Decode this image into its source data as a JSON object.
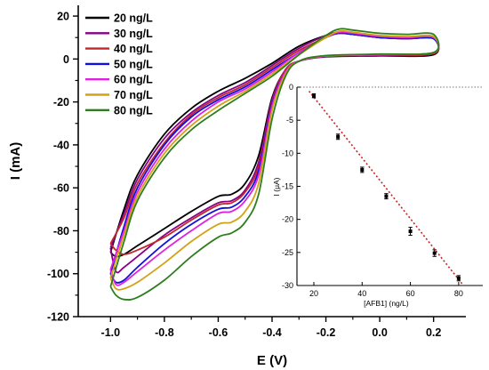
{
  "chart_data": [
    {
      "type": "line",
      "xlabel": "E (V)",
      "ylabel": "I (mA)",
      "xlim": [
        -1.12,
        0.32
      ],
      "ylim": [
        -120,
        25
      ],
      "xticks": [
        -1.0,
        -0.8,
        -0.6,
        -0.4,
        -0.2,
        0.0,
        0.2
      ],
      "xtick_labels": [
        "-1.0",
        "-0.8",
        "-0.6",
        "-0.4",
        "-0.2",
        "0.0",
        "0.2"
      ],
      "yticks": [
        20,
        0,
        -20,
        -40,
        -60,
        -80,
        -100,
        -120
      ],
      "ytick_labels": [
        "20",
        "0",
        "-20",
        "-40",
        "-60",
        "-80",
        "-100",
        "-120"
      ],
      "legend_position": "top-left",
      "grid": false,
      "series": [
        {
          "name": "20 ng/L",
          "color": "#000000",
          "upper": {
            "x": [
              -1.0,
              -0.95,
              -0.9,
              -0.8,
              -0.7,
              -0.6,
              -0.5,
              -0.4,
              -0.3,
              -0.2,
              -0.15,
              -0.1,
              0.0,
              0.1,
              0.2
            ],
            "y": [
              -90,
              -70,
              -54,
              -35,
              -23,
              -15,
              -9,
              -2,
              6,
              11,
              12,
              11.5,
              10,
              9.5,
              9.5
            ]
          },
          "lower": {
            "x": [
              0.2,
              0.0,
              -0.2,
              -0.3,
              -0.35,
              -0.4,
              -0.45,
              -0.5,
              -0.55,
              -0.6,
              -0.7,
              -0.8,
              -0.9,
              -0.95,
              -0.98
            ],
            "y": [
              2,
              1.5,
              1,
              -1,
              -5,
              -18,
              -45,
              -58,
              -63,
              -64,
              -71,
              -79,
              -87,
              -91,
              -92
            ]
          }
        },
        {
          "name": "30 ng/L",
          "color": "#880088",
          "upper": {
            "x": [
              -1.0,
              -0.95,
              -0.9,
              -0.8,
              -0.7,
              -0.6,
              -0.5,
              -0.4,
              -0.3,
              -0.2,
              -0.15,
              -0.1,
              0.0,
              0.1,
              0.2
            ],
            "y": [
              -88,
              -72,
              -56,
              -37,
              -25,
              -17,
              -11,
              -3,
              5,
              11,
              12.5,
              12,
              10.5,
              10,
              10
            ]
          },
          "lower": {
            "x": [
              0.2,
              0.0,
              -0.2,
              -0.3,
              -0.35,
              -0.4,
              -0.45,
              -0.5,
              -0.55,
              -0.6,
              -0.7,
              -0.8,
              -0.9,
              -0.95,
              -0.98
            ],
            "y": [
              2.5,
              1.8,
              1.2,
              -1,
              -5,
              -19,
              -48,
              -61,
              -66,
              -67,
              -74,
              -82,
              -92,
              -97,
              -99
            ]
          }
        },
        {
          "name": "40 ng/L",
          "color": "#c0282b",
          "upper": {
            "x": [
              -1.0,
              -0.95,
              -0.9,
              -0.8,
              -0.7,
              -0.6,
              -0.5,
              -0.4,
              -0.3,
              -0.2,
              -0.15,
              -0.1,
              0.0,
              0.1,
              0.2
            ],
            "y": [
              -86,
              -74,
              -58,
              -39,
              -26,
              -18,
              -12,
              -4,
              4,
              10,
              12,
              11.5,
              10,
              9.5,
              9.5
            ]
          },
          "lower": {
            "x": [
              0.2,
              0.0,
              -0.2,
              -0.3,
              -0.35,
              -0.4,
              -0.45,
              -0.5,
              -0.55,
              -0.6,
              -0.7,
              -0.8,
              -0.9,
              -0.95,
              -0.98
            ],
            "y": [
              2.5,
              1.8,
              1.2,
              -1,
              -5,
              -20,
              -50,
              -62,
              -67,
              -68,
              -75,
              -83,
              -89,
              -91,
              -89
            ]
          }
        },
        {
          "name": "50 ng/L",
          "color": "#1010dd",
          "upper": {
            "x": [
              -1.0,
              -0.95,
              -0.9,
              -0.8,
              -0.7,
              -0.6,
              -0.5,
              -0.4,
              -0.3,
              -0.2,
              -0.15,
              -0.1,
              0.0,
              0.1,
              0.2
            ],
            "y": [
              -100,
              -78,
              -60,
              -40,
              -27,
              -19,
              -13,
              -5,
              3,
              10,
              12,
              11.5,
              10,
              9.5,
              9.5
            ]
          },
          "lower": {
            "x": [
              0.2,
              0.0,
              -0.2,
              -0.3,
              -0.35,
              -0.4,
              -0.45,
              -0.5,
              -0.55,
              -0.6,
              -0.7,
              -0.8,
              -0.9,
              -0.95,
              -0.98
            ],
            "y": [
              3,
              2,
              1.3,
              -1,
              -6,
              -21,
              -52,
              -64,
              -69,
              -70,
              -77,
              -86,
              -97,
              -103,
              -104
            ]
          }
        },
        {
          "name": "60 ng/L",
          "color": "#e020e0",
          "upper": {
            "x": [
              -1.0,
              -0.95,
              -0.9,
              -0.8,
              -0.7,
              -0.6,
              -0.5,
              -0.4,
              -0.3,
              -0.2,
              -0.15,
              -0.1,
              0.0,
              0.1,
              0.2
            ],
            "y": [
              -98,
              -80,
              -62,
              -42,
              -29,
              -20,
              -14,
              -6,
              3,
              10,
              12.5,
              12,
              10.5,
              10,
              10
            ]
          },
          "lower": {
            "x": [
              0.2,
              0.0,
              -0.2,
              -0.3,
              -0.35,
              -0.4,
              -0.45,
              -0.5,
              -0.55,
              -0.6,
              -0.7,
              -0.8,
              -0.9,
              -0.95,
              -0.98
            ],
            "y": [
              3,
              2,
              1.3,
              -1,
              -6,
              -22,
              -54,
              -66,
              -71,
              -72,
              -80,
              -89,
              -99,
              -104,
              -105
            ]
          }
        },
        {
          "name": "70 ng/L",
          "color": "#d4a017",
          "upper": {
            "x": [
              -1.0,
              -0.95,
              -0.9,
              -0.8,
              -0.7,
              -0.6,
              -0.5,
              -0.4,
              -0.3,
              -0.2,
              -0.15,
              -0.1,
              0.0,
              0.1,
              0.2
            ],
            "y": [
              -102,
              -82,
              -64,
              -44,
              -31,
              -22,
              -15,
              -7,
              2,
              10,
              13,
              12.5,
              11,
              10.5,
              10.5
            ]
          },
          "lower": {
            "x": [
              0.2,
              0.0,
              -0.2,
              -0.3,
              -0.35,
              -0.4,
              -0.45,
              -0.5,
              -0.55,
              -0.6,
              -0.7,
              -0.8,
              -0.9,
              -0.95,
              -0.98
            ],
            "y": [
              3,
              2.2,
              1.5,
              -1,
              -7,
              -24,
              -58,
              -71,
              -76,
              -77,
              -85,
              -95,
              -104,
              -107,
              -107
            ]
          }
        },
        {
          "name": "80 ng/L",
          "color": "#2e7d1e",
          "upper": {
            "x": [
              -1.0,
              -0.95,
              -0.9,
              -0.8,
              -0.7,
              -0.6,
              -0.5,
              -0.4,
              -0.3,
              -0.2,
              -0.15,
              -0.1,
              0.0,
              0.1,
              0.2
            ],
            "y": [
              -106,
              -85,
              -66,
              -46,
              -33,
              -24,
              -16,
              -8,
              2,
              11,
              14,
              13.5,
              12,
              11.5,
              11.5
            ]
          },
          "lower": {
            "x": [
              0.2,
              0.0,
              -0.2,
              -0.3,
              -0.35,
              -0.4,
              -0.45,
              -0.5,
              -0.55,
              -0.6,
              -0.7,
              -0.8,
              -0.9,
              -0.95,
              -0.98
            ],
            "y": [
              3,
              2.3,
              1.6,
              -1,
              -8,
              -28,
              -63,
              -76,
              -81,
              -83,
              -92,
              -103,
              -111,
              -112,
              -110
            ]
          }
        }
      ]
    },
    {
      "type": "scatter",
      "position": "bottom-right inset",
      "xlabel": "[AFB1]  (ng/L)",
      "ylabel": "I (μA)",
      "xlim": [
        13,
        90
      ],
      "ylim": [
        -30,
        0
      ],
      "xticks": [
        20,
        40,
        60,
        80
      ],
      "xtick_labels": [
        "20",
        "40",
        "60",
        "80"
      ],
      "yticks": [
        0,
        -5,
        -10,
        -15,
        -20,
        -25,
        -30
      ],
      "ytick_labels": [
        "0",
        "-5",
        "-10",
        "-15",
        "-20",
        "-25",
        "-30"
      ],
      "zero_line": "dotted",
      "points": {
        "x": [
          20,
          30,
          40,
          50,
          60,
          70,
          80
        ],
        "y": [
          -1.3,
          -7.5,
          -12.5,
          -16.5,
          -21.8,
          -25.1,
          -28.9
        ],
        "error": [
          0.3,
          0.4,
          0.4,
          0.4,
          0.6,
          0.5,
          0.4
        ]
      },
      "fit_line": {
        "x": [
          18,
          82
        ],
        "y": [
          -0.6,
          -30
        ],
        "color": "#cc2222",
        "style": "dotted"
      }
    }
  ]
}
